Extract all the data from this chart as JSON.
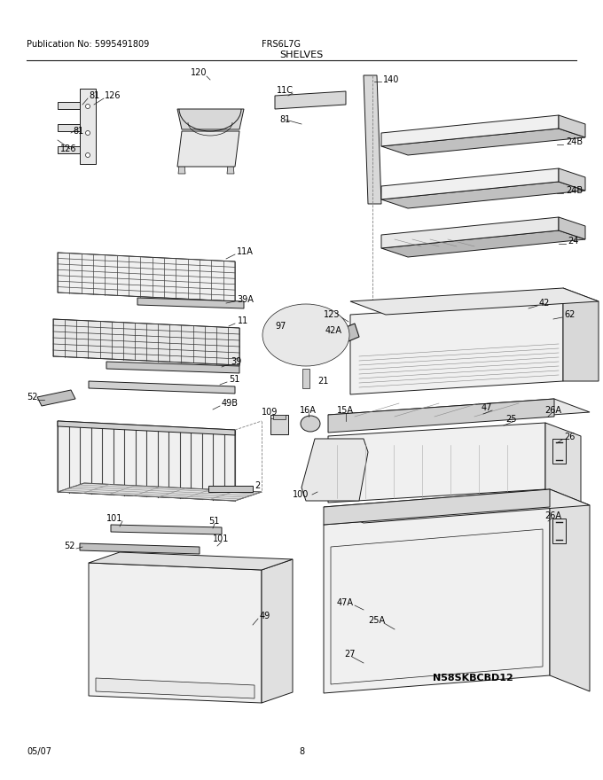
{
  "title": "SHELVES",
  "pub_no": "Publication No: 5995491809",
  "model": "FRS6L7G",
  "date": "05/07",
  "page": "8",
  "part_id": "N58SKBCBD12",
  "bg_color": "#ffffff",
  "line_color": "#000000",
  "text_color": "#000000",
  "fig_width": 6.8,
  "fig_height": 8.8,
  "dpi": 100
}
